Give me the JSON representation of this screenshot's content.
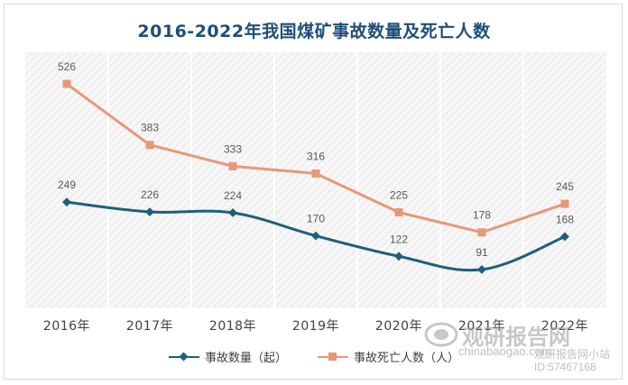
{
  "chart_data": {
    "type": "line",
    "title": "2016-2022年我国煤矿事故数量及死亡人数",
    "categories": [
      "2016年",
      "2017年",
      "2018年",
      "2019年",
      "2020年",
      "2021年",
      "2022年"
    ],
    "series": [
      {
        "name": "事故数量（起）",
        "values": [
          249,
          226,
          224,
          170,
          122,
          91,
          168
        ],
        "color": "#1f5f7a",
        "marker": "diamond"
      },
      {
        "name": "事故死亡人数（人）",
        "values": [
          526,
          383,
          333,
          316,
          225,
          178,
          245
        ],
        "color": "#e8977a",
        "marker": "square"
      }
    ],
    "ylim": [
      0,
      600
    ],
    "xlabel": "",
    "ylabel": "",
    "grid": "vertical",
    "legend_position": "bottom"
  },
  "watermark": {
    "brand": "观研报告网",
    "site": "chinabaogao.com",
    "note": "观研报告网小站",
    "id": "ID:57467168"
  }
}
